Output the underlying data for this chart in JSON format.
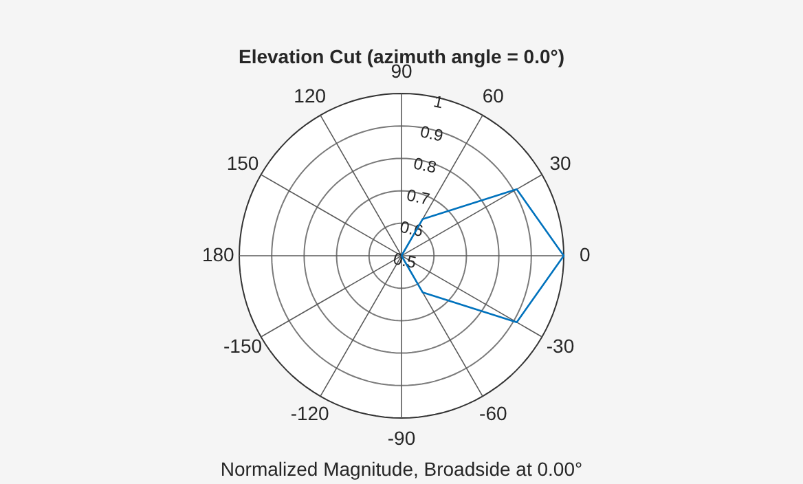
{
  "chart_data": {
    "type": "radar",
    "title": "Elevation Cut (azimuth angle = 0.0°)",
    "xlabel": "Normalized Magnitude, Broadside at 0.00°",
    "categories": [
      "90",
      "60",
      "30",
      "0",
      "-30",
      "-60",
      "-90",
      "-120",
      "-150",
      "180",
      "150",
      "120"
    ],
    "series": [
      {
        "color": "#0072bd",
        "values": [
          0.5,
          0.63,
          0.91,
          1,
          0.91,
          0.63,
          0.5,
          0.5,
          0.5,
          0.5,
          0.5,
          0.5
        ]
      }
    ],
    "ylim": [
      0.5,
      1
    ],
    "yticks": [
      0.5,
      0.6,
      0.7,
      0.8,
      0.9,
      1
    ],
    "grid": true,
    "marker": "none"
  }
}
